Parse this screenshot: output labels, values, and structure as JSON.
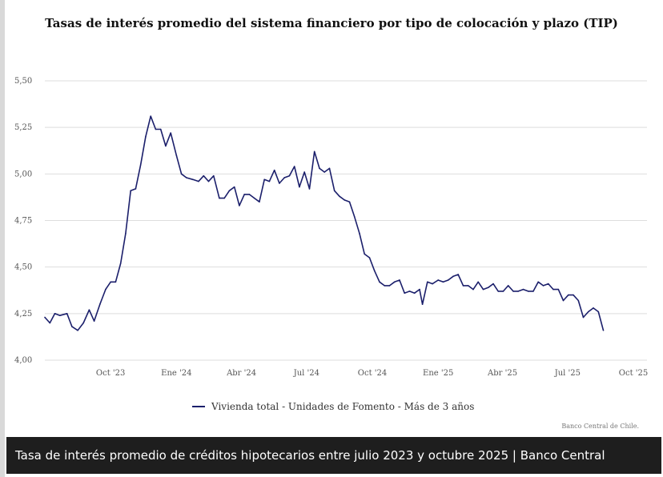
{
  "caption": "Tasa de interés promedio de créditos hipotecarios entre julio 2023 y octubre 2025 | Banco Central",
  "credit": "Banco Central de Chile.",
  "colors": {
    "series": "#1b1f6b",
    "grid": "#dddddd",
    "caption_bg": "#1e1e1e"
  },
  "chart_data": {
    "type": "line",
    "title": "Tasas de interés promedio del sistema financiero por tipo de colocación y plazo (TIP)",
    "xlabel": "",
    "ylabel": "",
    "ylim": [
      4.0,
      5.5
    ],
    "xlim": [
      "2023-07-01",
      "2025-10-20"
    ],
    "grid": true,
    "legend_position": "bottom-center",
    "y_ticks": [
      "4,00",
      "4,25",
      "4,50",
      "4,75",
      "5,00",
      "5,25",
      "5,50"
    ],
    "x_ticks": [
      {
        "date": "2023-10-01",
        "label": "Oct '23"
      },
      {
        "date": "2024-01-01",
        "label": "Ene '24"
      },
      {
        "date": "2024-04-01",
        "label": "Abr '24"
      },
      {
        "date": "2024-07-01",
        "label": "Jul '24"
      },
      {
        "date": "2024-10-01",
        "label": "Oct '24"
      },
      {
        "date": "2025-01-01",
        "label": "Ene '25"
      },
      {
        "date": "2025-04-01",
        "label": "Abr '25"
      },
      {
        "date": "2025-07-01",
        "label": "Jul '25"
      },
      {
        "date": "2025-10-01",
        "label": "Oct '25"
      }
    ],
    "series": [
      {
        "name": "Vivienda total - Unidades de Fomento - Más de 3 años",
        "points": [
          [
            "2023-07-01",
            4.23
          ],
          [
            "2023-07-08",
            4.2
          ],
          [
            "2023-07-15",
            4.25
          ],
          [
            "2023-07-22",
            4.24
          ],
          [
            "2023-08-01",
            4.25
          ],
          [
            "2023-08-08",
            4.18
          ],
          [
            "2023-08-16",
            4.16
          ],
          [
            "2023-08-24",
            4.2
          ],
          [
            "2023-09-01",
            4.27
          ],
          [
            "2023-09-08",
            4.21
          ],
          [
            "2023-09-16",
            4.3
          ],
          [
            "2023-09-24",
            4.38
          ],
          [
            "2023-10-01",
            4.42
          ],
          [
            "2023-10-08",
            4.42
          ],
          [
            "2023-10-15",
            4.52
          ],
          [
            "2023-10-22",
            4.68
          ],
          [
            "2023-10-29",
            4.91
          ],
          [
            "2023-11-05",
            4.92
          ],
          [
            "2023-11-12",
            5.05
          ],
          [
            "2023-11-19",
            5.2
          ],
          [
            "2023-11-26",
            5.31
          ],
          [
            "2023-12-03",
            5.24
          ],
          [
            "2023-12-10",
            5.24
          ],
          [
            "2023-12-17",
            5.15
          ],
          [
            "2023-12-24",
            5.22
          ],
          [
            "2024-01-01",
            5.1
          ],
          [
            "2024-01-08",
            5.0
          ],
          [
            "2024-01-15",
            4.98
          ],
          [
            "2024-01-24",
            4.97
          ],
          [
            "2024-02-01",
            4.96
          ],
          [
            "2024-02-08",
            4.99
          ],
          [
            "2024-02-15",
            4.96
          ],
          [
            "2024-02-22",
            4.99
          ],
          [
            "2024-03-01",
            4.87
          ],
          [
            "2024-03-08",
            4.87
          ],
          [
            "2024-03-15",
            4.91
          ],
          [
            "2024-03-22",
            4.93
          ],
          [
            "2024-03-29",
            4.83
          ],
          [
            "2024-04-05",
            4.89
          ],
          [
            "2024-04-12",
            4.89
          ],
          [
            "2024-04-19",
            4.87
          ],
          [
            "2024-04-26",
            4.85
          ],
          [
            "2024-05-03",
            4.97
          ],
          [
            "2024-05-10",
            4.96
          ],
          [
            "2024-05-17",
            5.02
          ],
          [
            "2024-05-24",
            4.95
          ],
          [
            "2024-05-31",
            4.98
          ],
          [
            "2024-06-07",
            4.99
          ],
          [
            "2024-06-14",
            5.04
          ],
          [
            "2024-06-21",
            4.93
          ],
          [
            "2024-06-28",
            5.01
          ],
          [
            "2024-07-05",
            4.92
          ],
          [
            "2024-07-12",
            5.12
          ],
          [
            "2024-07-19",
            5.03
          ],
          [
            "2024-07-26",
            5.01
          ],
          [
            "2024-08-02",
            5.03
          ],
          [
            "2024-08-09",
            4.91
          ],
          [
            "2024-08-16",
            4.88
          ],
          [
            "2024-08-23",
            4.86
          ],
          [
            "2024-08-30",
            4.85
          ],
          [
            "2024-09-06",
            4.77
          ],
          [
            "2024-09-13",
            4.68
          ],
          [
            "2024-09-20",
            4.57
          ],
          [
            "2024-09-27",
            4.55
          ],
          [
            "2024-10-04",
            4.48
          ],
          [
            "2024-10-11",
            4.42
          ],
          [
            "2024-10-18",
            4.4
          ],
          [
            "2024-10-25",
            4.4
          ],
          [
            "2024-11-01",
            4.42
          ],
          [
            "2024-11-08",
            4.43
          ],
          [
            "2024-11-15",
            4.36
          ],
          [
            "2024-11-22",
            4.37
          ],
          [
            "2024-11-29",
            4.36
          ],
          [
            "2024-12-06",
            4.38
          ],
          [
            "2024-12-10",
            4.3
          ],
          [
            "2024-12-17",
            4.42
          ],
          [
            "2024-12-24",
            4.41
          ],
          [
            "2025-01-01",
            4.43
          ],
          [
            "2025-01-08",
            4.42
          ],
          [
            "2025-01-15",
            4.43
          ],
          [
            "2025-01-22",
            4.45
          ],
          [
            "2025-01-29",
            4.46
          ],
          [
            "2025-02-05",
            4.4
          ],
          [
            "2025-02-12",
            4.4
          ],
          [
            "2025-02-19",
            4.38
          ],
          [
            "2025-02-26",
            4.42
          ],
          [
            "2025-03-05",
            4.38
          ],
          [
            "2025-03-12",
            4.39
          ],
          [
            "2025-03-19",
            4.41
          ],
          [
            "2025-03-26",
            4.37
          ],
          [
            "2025-04-02",
            4.37
          ],
          [
            "2025-04-09",
            4.4
          ],
          [
            "2025-04-16",
            4.37
          ],
          [
            "2025-04-23",
            4.37
          ],
          [
            "2025-04-30",
            4.38
          ],
          [
            "2025-05-07",
            4.37
          ],
          [
            "2025-05-14",
            4.37
          ],
          [
            "2025-05-21",
            4.42
          ],
          [
            "2025-05-28",
            4.4
          ],
          [
            "2025-06-04",
            4.41
          ],
          [
            "2025-06-11",
            4.38
          ],
          [
            "2025-06-18",
            4.38
          ],
          [
            "2025-06-25",
            4.32
          ],
          [
            "2025-07-02",
            4.35
          ],
          [
            "2025-07-09",
            4.35
          ],
          [
            "2025-07-16",
            4.32
          ],
          [
            "2025-07-23",
            4.23
          ],
          [
            "2025-07-30",
            4.26
          ],
          [
            "2025-08-06",
            4.28
          ],
          [
            "2025-08-13",
            4.26
          ],
          [
            "2025-08-20",
            4.16
          ]
        ]
      }
    ]
  }
}
